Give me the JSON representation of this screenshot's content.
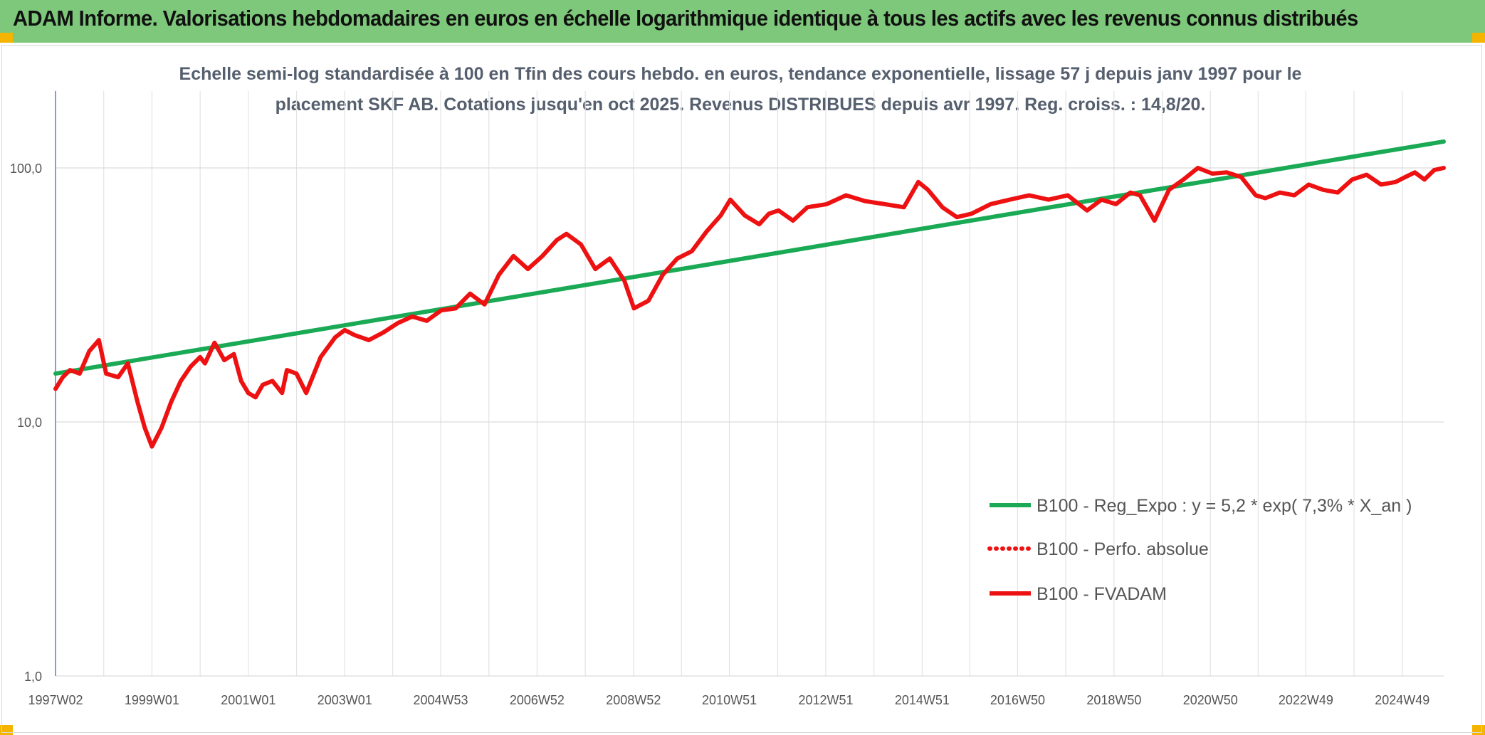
{
  "header": {
    "title": "ADAM Informe. Valorisations hebdomadaires en euros en échelle logarithmique identique à tous les actifs avec les revenus connus distribués"
  },
  "chart_data": {
    "type": "line",
    "title_line1": "Echelle semi-log standardisée à 100 en Tfin des cours hebdo. en euros, tendance exponentielle, lissage 57 j depuis janv 1997 pour le",
    "title_line2": "placement SKF AB. Cotations jusqu'en oct 2025. Revenus DISTRIBUES depuis avr 1997. Reg. croiss. : 14,8/20.",
    "y_scale": "log",
    "ylim": [
      1,
      180
    ],
    "y_ticks": [
      1,
      10,
      100
    ],
    "y_tick_labels": [
      "1,0",
      "10,0",
      "100,0"
    ],
    "xlim": [
      1997.0,
      2025.8
    ],
    "x_ticks": [
      1997.0,
      1999.0,
      2001.0,
      2003.0,
      2004.99,
      2006.99,
      2008.99,
      2010.98,
      2012.98,
      2014.98,
      2016.96,
      2018.96,
      2020.96,
      2022.94,
      2024.94
    ],
    "x_tick_labels": [
      "1997W02",
      "1999W01",
      "2001W01",
      "2003W01",
      "2004W53",
      "2006W52",
      "2008W52",
      "2010W51",
      "2012W51",
      "2014W51",
      "2016W50",
      "2018W50",
      "2020W50",
      "2022W49",
      "2024W49"
    ],
    "grid": true,
    "legend_position": "bottom-right",
    "series": [
      {
        "name": "B100 - Reg_Expo : y = 5,2 * exp( 7,3% *  X_an )",
        "color": "#1aaa55",
        "style": "solid",
        "x": [
          1997.0,
          2025.8
        ],
        "values": [
          15.5,
          127
        ]
      },
      {
        "name": "B100 - Perfo. absolue",
        "color": "#ee1111",
        "style": "dotted",
        "x": [],
        "values": []
      },
      {
        "name": "B100 - FVADAM",
        "color": "#ee1111",
        "style": "solid",
        "x": [
          1997.0,
          1997.15,
          1997.3,
          1997.5,
          1997.7,
          1997.9,
          1998.05,
          1998.3,
          1998.5,
          1998.7,
          1998.85,
          1999.0,
          1999.2,
          1999.4,
          1999.6,
          1999.8,
          2000.0,
          2000.1,
          2000.3,
          2000.5,
          2000.7,
          2000.85,
          2001.0,
          2001.15,
          2001.3,
          2001.5,
          2001.7,
          2001.8,
          2002.0,
          2002.2,
          2002.5,
          2002.8,
          2003.0,
          2003.2,
          2003.5,
          2003.8,
          2004.1,
          2004.4,
          2004.7,
          2005.0,
          2005.3,
          2005.6,
          2005.9,
          2006.2,
          2006.5,
          2006.8,
          2007.1,
          2007.4,
          2007.6,
          2007.9,
          2008.2,
          2008.5,
          2008.8,
          2009.0,
          2009.3,
          2009.6,
          2009.9,
          2010.2,
          2010.5,
          2010.8,
          2011.0,
          2011.3,
          2011.6,
          2011.8,
          2012.0,
          2012.3,
          2012.6,
          2013.0,
          2013.4,
          2013.8,
          2014.2,
          2014.6,
          2014.9,
          2015.1,
          2015.4,
          2015.7,
          2016.0,
          2016.4,
          2016.8,
          2017.2,
          2017.6,
          2018.0,
          2018.4,
          2018.7,
          2019.0,
          2019.3,
          2019.5,
          2019.8,
          2020.1,
          2020.4,
          2020.7,
          2021.0,
          2021.3,
          2021.6,
          2021.9,
          2022.1,
          2022.4,
          2022.7,
          2023.0,
          2023.3,
          2023.6,
          2023.9,
          2024.2,
          2024.5,
          2024.8,
          2025.0,
          2025.2,
          2025.4,
          2025.6,
          2025.8
        ],
        "values": [
          13.5,
          15.0,
          16.0,
          15.5,
          19.0,
          21.0,
          15.5,
          15.0,
          17.0,
          12.0,
          9.5,
          8.0,
          9.5,
          12.0,
          14.5,
          16.5,
          18.0,
          17.0,
          20.5,
          17.5,
          18.5,
          14.5,
          13.0,
          12.5,
          14.0,
          14.5,
          13.0,
          16.0,
          15.5,
          13.0,
          18.0,
          21.5,
          23.0,
          22.0,
          21.0,
          22.5,
          24.5,
          26.0,
          25.0,
          27.5,
          28.0,
          32.0,
          29.0,
          38.0,
          45.0,
          40.0,
          45.0,
          52.0,
          55.0,
          50.0,
          40.0,
          44.0,
          36.0,
          28.0,
          30.0,
          38.0,
          44.0,
          47.0,
          56.0,
          65.0,
          75.0,
          65.0,
          60.0,
          66.0,
          68.0,
          62.0,
          70.0,
          72.0,
          78.0,
          74.0,
          72.0,
          70.0,
          88.0,
          82.0,
          70.0,
          64.0,
          66.0,
          72.0,
          75.0,
          78.0,
          75.0,
          78.0,
          68.0,
          75.0,
          72.0,
          80.0,
          78.0,
          62.0,
          82.0,
          90.0,
          100.0,
          95.0,
          96.0,
          92.0,
          78.0,
          76.0,
          80.0,
          78.0,
          86.0,
          82.0,
          80.0,
          90.0,
          94.0,
          86.0,
          88.0,
          92.0,
          96.0,
          90.0,
          98.0,
          100.0
        ]
      }
    ]
  }
}
